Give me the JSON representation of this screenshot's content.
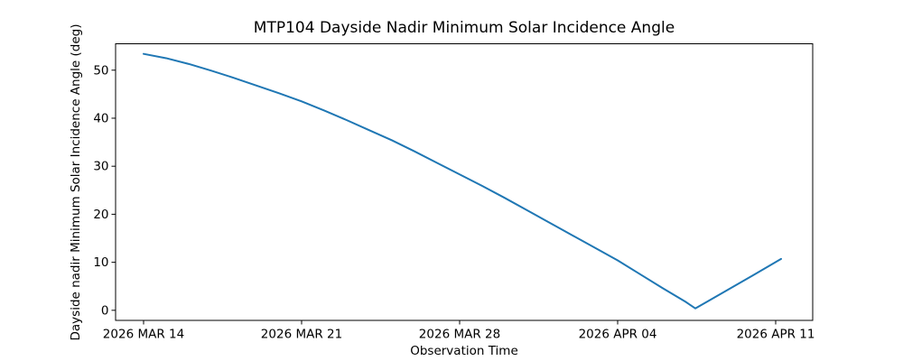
{
  "figure": {
    "background_color": "#ffffff",
    "axis_color": "#000000",
    "text_color": "#000000"
  },
  "chart_data": {
    "type": "line",
    "title": "MTP104 Dayside Nadir Minimum Solar Incidence Angle",
    "xlabel": "Observation Time",
    "ylabel": "Dayside nadir Minimum Solar Incidence Angle (deg)",
    "grid": false,
    "legend": null,
    "x_unit": "days since 2026 MAR 14",
    "xlim": [
      -1.24,
      29.64
    ],
    "ylim": [
      -2.1,
      55.5
    ],
    "xticks": {
      "positions": [
        0,
        7,
        14,
        21,
        28
      ],
      "labels": [
        "2026 MAR 14",
        "2026 MAR 21",
        "2026 MAR 28",
        "2026 APR 04",
        "2026 APR 11"
      ]
    },
    "yticks": {
      "positions": [
        0,
        10,
        20,
        30,
        40,
        50
      ],
      "labels": [
        "0",
        "10",
        "20",
        "30",
        "40",
        "50"
      ]
    },
    "series": [
      {
        "color": "#1f77b4",
        "line_width": 2,
        "x": [
          0,
          1,
          2,
          3,
          4,
          5,
          6,
          7,
          8,
          9,
          10,
          11,
          12,
          13,
          14,
          15,
          16,
          17,
          18,
          19,
          20,
          21,
          22,
          23,
          24,
          24.44,
          25,
          26,
          27,
          28.24
        ],
        "y": [
          53.4,
          52.5,
          51.3,
          49.9,
          48.4,
          46.8,
          45.2,
          43.5,
          41.6,
          39.6,
          37.5,
          35.4,
          33.1,
          30.7,
          28.3,
          25.9,
          23.4,
          20.8,
          18.2,
          15.6,
          13.0,
          10.4,
          7.5,
          4.6,
          1.8,
          0.4,
          1.9,
          4.6,
          7.3,
          10.7
        ]
      }
    ]
  }
}
